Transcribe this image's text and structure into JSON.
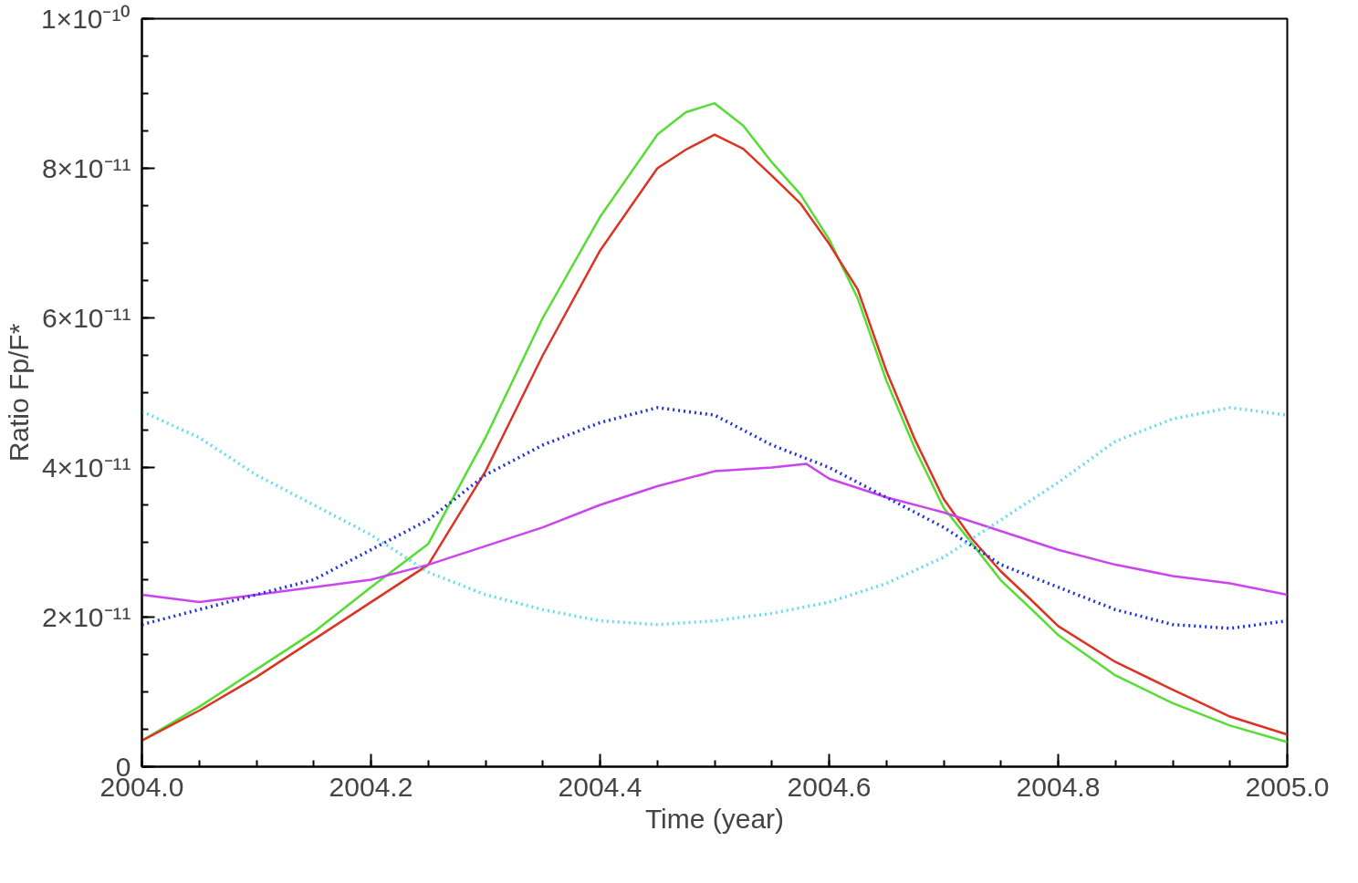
{
  "chart_data": {
    "type": "line",
    "xlabel": "Time (year)",
    "ylabel": "Ratio Fp/F*",
    "xlim": [
      2004.0,
      2005.0
    ],
    "ylim": [
      0,
      1e-10
    ],
    "xticks": [
      {
        "value": 2004.0,
        "label": "2004.0"
      },
      {
        "value": 2004.2,
        "label": "2004.2"
      },
      {
        "value": 2004.4,
        "label": "2004.4"
      },
      {
        "value": 2004.6,
        "label": "2004.6"
      },
      {
        "value": 2004.8,
        "label": "2004.8"
      },
      {
        "value": 2005.0,
        "label": "2005.0"
      }
    ],
    "yticks": [
      0,
      {
        "value": 2e-11,
        "label": "2×10⁻¹¹"
      },
      {
        "value": 4e-11,
        "label": "4×10⁻¹¹"
      },
      {
        "value": 6e-11,
        "label": "6×10⁻¹¹"
      },
      {
        "value": 8e-11,
        "label": "8×10⁻¹¹"
      },
      {
        "value": 1e-10,
        "label": "1×10⁻¹⁰"
      }
    ],
    "grid": false,
    "series": [
      {
        "color": "#55dd33",
        "line_style": "solid",
        "x": [
          2004.0,
          2004.05,
          2004.1,
          2004.15,
          2004.2,
          2004.25,
          2004.3,
          2004.35,
          2004.4,
          2004.45,
          2004.475,
          2004.5,
          2004.525,
          2004.55,
          2004.575,
          2004.6,
          2004.625,
          2004.65,
          2004.675,
          2004.7,
          2004.725,
          2004.75,
          2004.775,
          2004.8,
          2004.85,
          2004.9,
          2004.95,
          2005.0
        ],
        "values": [
          3.5e-12,
          8e-12,
          1.3e-11,
          1.8e-11,
          2.4e-11,
          2.98e-11,
          4.4e-11,
          6e-11,
          7.35e-11,
          8.45e-11,
          8.75e-11,
          8.87e-11,
          8.57e-11,
          8.08e-11,
          7.65e-11,
          7.05e-11,
          6.26e-11,
          5.16e-11,
          4.25e-11,
          3.46e-11,
          2.98e-11,
          2.49e-11,
          2.13e-11,
          1.76e-11,
          1.22e-11,
          8.5e-12,
          5.5e-12,
          3.3e-12
        ]
      },
      {
        "color": "#dd3322",
        "line_style": "solid",
        "x": [
          2004.0,
          2004.05,
          2004.1,
          2004.15,
          2004.2,
          2004.25,
          2004.3,
          2004.35,
          2004.4,
          2004.45,
          2004.475,
          2004.5,
          2004.525,
          2004.55,
          2004.575,
          2004.6,
          2004.625,
          2004.65,
          2004.675,
          2004.7,
          2004.725,
          2004.75,
          2004.775,
          2004.8,
          2004.85,
          2004.9,
          2004.95,
          2005.0
        ],
        "values": [
          3.5e-12,
          7.5e-12,
          1.2e-11,
          1.7e-11,
          2.2e-11,
          2.7e-11,
          3.95e-11,
          5.5e-11,
          6.9e-11,
          8e-11,
          8.25e-11,
          8.45e-11,
          8.26e-11,
          7.9e-11,
          7.53e-11,
          6.99e-11,
          6.38e-11,
          5.29e-11,
          4.37e-11,
          3.58e-11,
          3.04e-11,
          2.61e-11,
          2.25e-11,
          1.88e-11,
          1.4e-11,
          1.03e-11,
          6.7e-12,
          4.3e-12
        ]
      },
      {
        "color": "#cc44ee",
        "line_style": "solid",
        "x": [
          2004.0,
          2004.05,
          2004.1,
          2004.15,
          2004.2,
          2004.25,
          2004.3,
          2004.35,
          2004.4,
          2004.45,
          2004.5,
          2004.55,
          2004.58,
          2004.6,
          2004.65,
          2004.7,
          2004.75,
          2004.8,
          2004.85,
          2004.9,
          2004.95,
          2005.0
        ],
        "values": [
          2.3e-11,
          2.2e-11,
          2.3e-11,
          2.4e-11,
          2.5e-11,
          2.7e-11,
          2.95e-11,
          3.2e-11,
          3.5e-11,
          3.75e-11,
          3.95e-11,
          4e-11,
          4.05e-11,
          3.85e-11,
          3.6e-11,
          3.4e-11,
          3.15e-11,
          2.9e-11,
          2.7e-11,
          2.55e-11,
          2.45e-11,
          2.3e-11
        ]
      },
      {
        "color": "#2233dd",
        "line_style": "dotted",
        "x": [
          2004.0,
          2004.05,
          2004.1,
          2004.15,
          2004.2,
          2004.25,
          2004.3,
          2004.35,
          2004.4,
          2004.45,
          2004.5,
          2004.55,
          2004.6,
          2004.65,
          2004.7,
          2004.75,
          2004.8,
          2004.85,
          2004.9,
          2004.95,
          2005.0
        ],
        "values": [
          1.9e-11,
          2.1e-11,
          2.3e-11,
          2.5e-11,
          2.9e-11,
          3.3e-11,
          3.9e-11,
          4.3e-11,
          4.6e-11,
          4.8e-11,
          4.7e-11,
          4.3e-11,
          4e-11,
          3.6e-11,
          3.2e-11,
          2.7e-11,
          2.4e-11,
          2.1e-11,
          1.9e-11,
          1.85e-11,
          1.95e-11
        ]
      },
      {
        "color": "#66ddee",
        "line_style": "dotted",
        "x": [
          2004.0,
          2004.05,
          2004.1,
          2004.15,
          2004.2,
          2004.25,
          2004.3,
          2004.35,
          2004.4,
          2004.45,
          2004.5,
          2004.55,
          2004.6,
          2004.65,
          2004.7,
          2004.75,
          2004.8,
          2004.85,
          2004.9,
          2004.95,
          2005.0
        ],
        "values": [
          4.75e-11,
          4.4e-11,
          3.9e-11,
          3.5e-11,
          3.1e-11,
          2.6e-11,
          2.3e-11,
          2.1e-11,
          1.95e-11,
          1.9e-11,
          1.95e-11,
          2.05e-11,
          2.2e-11,
          2.45e-11,
          2.8e-11,
          3.3e-11,
          3.8e-11,
          4.35e-11,
          4.65e-11,
          4.8e-11,
          4.7e-11
        ]
      }
    ]
  }
}
